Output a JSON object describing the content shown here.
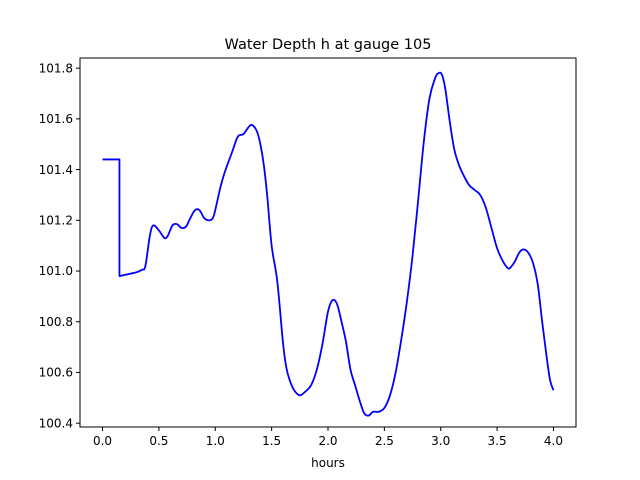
{
  "chart_data": {
    "type": "line",
    "title": "Water Depth h at gauge 105",
    "xlabel": "hours",
    "ylabel": "",
    "xlim": [
      -0.2,
      4.2
    ],
    "ylim": [
      100.385,
      101.84
    ],
    "x_ticks": [
      0.0,
      0.5,
      1.0,
      1.5,
      2.0,
      2.5,
      3.0,
      3.5,
      4.0
    ],
    "x_tick_labels": [
      "0.0",
      "0.5",
      "1.0",
      "1.5",
      "2.0",
      "2.5",
      "3.0",
      "3.5",
      "4.0"
    ],
    "y_ticks": [
      100.4,
      100.6,
      100.8,
      101.0,
      101.2,
      101.4,
      101.6,
      101.8
    ],
    "y_tick_labels": [
      "100.4",
      "100.6",
      "100.8",
      "101.0",
      "101.2",
      "101.4",
      "101.6",
      "101.8"
    ],
    "grid": false,
    "legend": "none",
    "series": [
      {
        "color": "#0000ff",
        "x": [
          0.0,
          0.1,
          0.15,
          0.15,
          0.2,
          0.25,
          0.3,
          0.35,
          0.38,
          0.42,
          0.45,
          0.5,
          0.55,
          0.58,
          0.62,
          0.66,
          0.7,
          0.74,
          0.78,
          0.82,
          0.86,
          0.9,
          0.94,
          0.98,
          1.01,
          1.04,
          1.07,
          1.1,
          1.15,
          1.2,
          1.25,
          1.3,
          1.33,
          1.37,
          1.4,
          1.43,
          1.46,
          1.5,
          1.55,
          1.6,
          1.63,
          1.66,
          1.7,
          1.75,
          1.8,
          1.85,
          1.9,
          1.95,
          2.0,
          2.04,
          2.08,
          2.12,
          2.16,
          2.2,
          2.24,
          2.28,
          2.32,
          2.36,
          2.4,
          2.45,
          2.5,
          2.55,
          2.6,
          2.65,
          2.7,
          2.75,
          2.8,
          2.85,
          2.9,
          2.95,
          2.98,
          3.01,
          3.04,
          3.08,
          3.12,
          3.16,
          3.2,
          3.25,
          3.3,
          3.35,
          3.4,
          3.45,
          3.5,
          3.55,
          3.6,
          3.63,
          3.66,
          3.7,
          3.74,
          3.78,
          3.82,
          3.86,
          3.9,
          3.94,
          3.97,
          4.0
        ],
        "y": [
          101.44,
          101.44,
          101.44,
          100.98,
          100.985,
          100.99,
          100.995,
          101.005,
          101.02,
          101.14,
          101.18,
          101.16,
          101.13,
          101.14,
          101.18,
          101.185,
          101.17,
          101.175,
          101.21,
          101.24,
          101.24,
          101.21,
          101.2,
          101.21,
          101.26,
          101.32,
          101.37,
          101.41,
          101.47,
          101.53,
          101.54,
          101.57,
          101.575,
          101.55,
          101.5,
          101.42,
          101.3,
          101.1,
          100.96,
          100.72,
          100.62,
          100.57,
          100.53,
          100.51,
          100.525,
          100.55,
          100.61,
          100.71,
          100.84,
          100.885,
          100.87,
          100.8,
          100.72,
          100.61,
          100.55,
          100.49,
          100.44,
          100.43,
          100.445,
          100.445,
          100.46,
          100.51,
          100.6,
          100.73,
          100.88,
          101.06,
          101.28,
          101.51,
          101.68,
          101.76,
          101.78,
          101.775,
          101.72,
          101.59,
          101.48,
          101.42,
          101.38,
          101.34,
          101.32,
          101.3,
          101.25,
          101.17,
          101.09,
          101.04,
          101.01,
          101.02,
          101.04,
          101.075,
          101.085,
          101.07,
          101.03,
          100.95,
          100.8,
          100.66,
          100.57,
          100.53
        ]
      }
    ]
  }
}
